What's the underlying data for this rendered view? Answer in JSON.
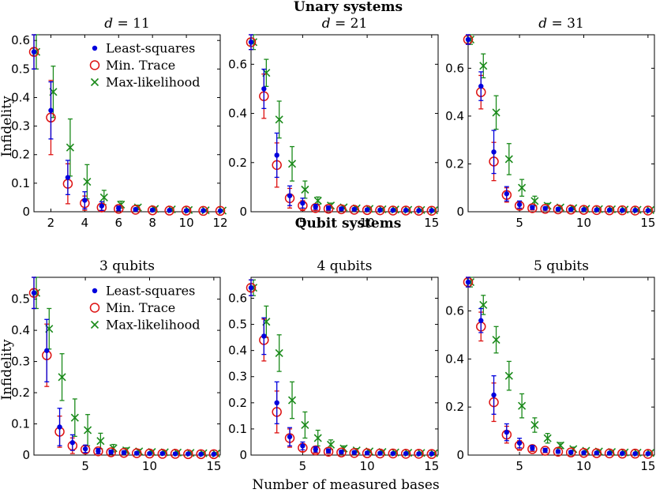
{
  "section_titles": {
    "top": "Unary systems",
    "bottom": "Qubit systems"
  },
  "ylabel": "Infidelity",
  "xlabel": "Number of measured bases",
  "legend": {
    "ls": "Least-squares",
    "mt": "Min. Trace",
    "ml": "Max-likelihood"
  },
  "colors": {
    "ls": "#0000dd",
    "mt": "#dd1111",
    "ml": "#1a8a1a"
  },
  "chart_data": [
    {
      "type": "scatter",
      "title_parts": [
        "d",
        " = 11"
      ],
      "xlim": [
        1,
        12
      ],
      "ylim": [
        0,
        0.62
      ],
      "xticks": [
        2,
        4,
        6,
        8,
        10,
        12
      ],
      "yticks": [
        0,
        0.1,
        0.2,
        0.3,
        0.4,
        0.5,
        0.6
      ],
      "ytick_labels": [
        "0",
        "0.1",
        "0.2",
        "0.3",
        "0.4",
        "0.5",
        "0.6"
      ],
      "legend": true,
      "series": [
        {
          "key": "ls",
          "x": [
            1,
            2,
            3,
            4,
            5,
            6,
            7,
            8,
            9,
            10,
            11,
            12
          ],
          "y": [
            0.56,
            0.355,
            0.12,
            0.04,
            0.02,
            0.012,
            0.008,
            0.006,
            0.005,
            0.004,
            0.004,
            0.003
          ],
          "err": [
            0.06,
            0.1,
            0.06,
            0.03,
            0.015,
            0.008,
            0.005,
            0.004,
            0.003,
            0.003,
            0.003,
            0.002
          ]
        },
        {
          "key": "mt",
          "x": [
            1,
            2,
            3,
            4,
            5,
            6,
            7,
            8,
            9,
            10,
            11,
            12
          ],
          "y": [
            0.56,
            0.33,
            0.098,
            0.03,
            0.015,
            0.01,
            0.007,
            0.005,
            0.004,
            0.004,
            0.003,
            0.003
          ],
          "err": [
            0.06,
            0.13,
            0.07,
            0.025,
            0.012,
            0.007,
            0.005,
            0.004,
            0.003,
            0.003,
            0.002,
            0.002
          ]
        },
        {
          "key": "ml",
          "x": [
            1,
            2,
            3,
            4,
            5,
            6,
            7,
            8,
            9,
            10,
            11,
            12
          ],
          "y": [
            0.56,
            0.42,
            0.225,
            0.105,
            0.05,
            0.025,
            0.015,
            0.01,
            0.008,
            0.006,
            0.005,
            0.004
          ],
          "err": [
            0.06,
            0.09,
            0.1,
            0.06,
            0.025,
            0.012,
            0.008,
            0.005,
            0.004,
            0.003,
            0.003,
            0.003
          ]
        }
      ]
    },
    {
      "type": "scatter",
      "title_parts": [
        "d",
        " = 21"
      ],
      "xlim": [
        1,
        15.5
      ],
      "ylim": [
        0,
        0.72
      ],
      "xticks": [
        5,
        10,
        15
      ],
      "yticks": [
        0,
        0.2,
        0.4,
        0.6
      ],
      "ytick_labels": [
        "0",
        "0.2",
        "0.4",
        "0.6"
      ],
      "legend": false,
      "series": [
        {
          "key": "ls",
          "x": [
            1,
            2,
            3,
            4,
            5,
            6,
            7,
            8,
            9,
            10,
            11,
            12,
            13,
            14,
            15
          ],
          "y": [
            0.69,
            0.5,
            0.23,
            0.065,
            0.035,
            0.02,
            0.015,
            0.012,
            0.01,
            0.008,
            0.007,
            0.006,
            0.006,
            0.005,
            0.005
          ],
          "err": [
            0.03,
            0.08,
            0.09,
            0.04,
            0.02,
            0.01,
            0.008,
            0.006,
            0.005,
            0.004,
            0.004,
            0.003,
            0.003,
            0.003,
            0.003
          ]
        },
        {
          "key": "mt",
          "x": [
            1,
            2,
            3,
            4,
            5,
            6,
            7,
            8,
            9,
            10,
            11,
            12,
            13,
            14,
            15
          ],
          "y": [
            0.69,
            0.47,
            0.19,
            0.055,
            0.025,
            0.015,
            0.012,
            0.01,
            0.008,
            0.007,
            0.006,
            0.005,
            0.005,
            0.004,
            0.004
          ],
          "err": [
            0.03,
            0.09,
            0.09,
            0.04,
            0.02,
            0.01,
            0.007,
            0.006,
            0.005,
            0.004,
            0.004,
            0.003,
            0.003,
            0.003,
            0.003
          ]
        },
        {
          "key": "ml",
          "x": [
            1,
            2,
            3,
            4,
            5,
            6,
            7,
            8,
            9,
            10,
            11,
            12,
            13,
            14,
            15
          ],
          "y": [
            0.69,
            0.565,
            0.375,
            0.195,
            0.09,
            0.045,
            0.025,
            0.018,
            0.014,
            0.012,
            0.01,
            0.009,
            0.008,
            0.007,
            0.006
          ],
          "err": [
            0.03,
            0.055,
            0.075,
            0.07,
            0.035,
            0.015,
            0.01,
            0.007,
            0.006,
            0.005,
            0.004,
            0.004,
            0.003,
            0.003,
            0.003
          ]
        }
      ]
    },
    {
      "type": "scatter",
      "title_parts": [
        "d",
        " = 31"
      ],
      "xlim": [
        1,
        15.5
      ],
      "ylim": [
        0,
        0.74
      ],
      "xticks": [
        5,
        10,
        15
      ],
      "yticks": [
        0,
        0.2,
        0.4,
        0.6
      ],
      "ytick_labels": [
        "0",
        "0.2",
        "0.4",
        "0.6"
      ],
      "legend": false,
      "series": [
        {
          "key": "ls",
          "x": [
            1,
            2,
            3,
            4,
            5,
            6,
            7,
            8,
            9,
            10,
            11,
            12,
            13,
            14,
            15
          ],
          "y": [
            0.72,
            0.525,
            0.25,
            0.075,
            0.03,
            0.018,
            0.014,
            0.011,
            0.01,
            0.009,
            0.008,
            0.007,
            0.006,
            0.006,
            0.005
          ],
          "err": [
            0.02,
            0.06,
            0.09,
            0.03,
            0.015,
            0.008,
            0.006,
            0.005,
            0.004,
            0.004,
            0.003,
            0.003,
            0.003,
            0.003,
            0.003
          ]
        },
        {
          "key": "mt",
          "x": [
            1,
            2,
            3,
            4,
            5,
            6,
            7,
            8,
            9,
            10,
            11,
            12,
            13,
            14,
            15
          ],
          "y": [
            0.72,
            0.5,
            0.21,
            0.07,
            0.025,
            0.015,
            0.012,
            0.01,
            0.009,
            0.008,
            0.007,
            0.006,
            0.006,
            0.005,
            0.005
          ],
          "err": [
            0.02,
            0.07,
            0.08,
            0.03,
            0.015,
            0.008,
            0.006,
            0.005,
            0.004,
            0.004,
            0.003,
            0.003,
            0.003,
            0.003,
            0.003
          ]
        },
        {
          "key": "ml",
          "x": [
            1,
            2,
            3,
            4,
            5,
            6,
            7,
            8,
            9,
            10,
            11,
            12,
            13,
            14,
            15
          ],
          "y": [
            0.72,
            0.61,
            0.415,
            0.22,
            0.1,
            0.045,
            0.025,
            0.018,
            0.015,
            0.012,
            0.011,
            0.01,
            0.009,
            0.008,
            0.007
          ],
          "err": [
            0.02,
            0.05,
            0.07,
            0.065,
            0.035,
            0.02,
            0.01,
            0.007,
            0.006,
            0.005,
            0.004,
            0.004,
            0.003,
            0.003,
            0.003
          ]
        }
      ]
    },
    {
      "type": "scatter",
      "title_parts": [
        "3 qubits"
      ],
      "xlim": [
        1,
        15.5
      ],
      "ylim": [
        0,
        0.57
      ],
      "xticks": [
        5,
        10,
        15
      ],
      "yticks": [
        0,
        0.1,
        0.2,
        0.3,
        0.4,
        0.5
      ],
      "ytick_labels": [
        "0",
        "0.1",
        "0.2",
        "0.3",
        "0.4",
        "0.5"
      ],
      "legend": true,
      "series": [
        {
          "key": "ls",
          "x": [
            1,
            2,
            3,
            4,
            5,
            6,
            7,
            8,
            9,
            10,
            11,
            12,
            13,
            14,
            15
          ],
          "y": [
            0.52,
            0.335,
            0.09,
            0.04,
            0.02,
            0.013,
            0.01,
            0.008,
            0.006,
            0.005,
            0.005,
            0.004,
            0.004,
            0.003,
            0.003
          ],
          "err": [
            0.05,
            0.1,
            0.06,
            0.025,
            0.012,
            0.008,
            0.006,
            0.005,
            0.004,
            0.003,
            0.003,
            0.003,
            0.002,
            0.002,
            0.002
          ]
        },
        {
          "key": "mt",
          "x": [
            1,
            2,
            3,
            4,
            5,
            6,
            7,
            8,
            9,
            10,
            11,
            12,
            13,
            14,
            15
          ],
          "y": [
            0.52,
            0.32,
            0.075,
            0.03,
            0.018,
            0.012,
            0.009,
            0.007,
            0.006,
            0.005,
            0.004,
            0.004,
            0.003,
            0.003,
            0.003
          ],
          "err": [
            0.05,
            0.1,
            0.05,
            0.025,
            0.012,
            0.008,
            0.006,
            0.005,
            0.004,
            0.003,
            0.003,
            0.003,
            0.002,
            0.002,
            0.002
          ]
        },
        {
          "key": "ml",
          "x": [
            1,
            2,
            3,
            4,
            5,
            6,
            7,
            8,
            9,
            10,
            11,
            12,
            13,
            14,
            15
          ],
          "y": [
            0.52,
            0.405,
            0.25,
            0.12,
            0.08,
            0.045,
            0.022,
            0.015,
            0.012,
            0.01,
            0.009,
            0.008,
            0.007,
            0.006,
            0.005
          ],
          "err": [
            0.05,
            0.065,
            0.075,
            0.06,
            0.05,
            0.025,
            0.012,
            0.008,
            0.006,
            0.005,
            0.004,
            0.004,
            0.003,
            0.003,
            0.003
          ]
        }
      ]
    },
    {
      "type": "scatter",
      "title_parts": [
        "4 qubits"
      ],
      "xlim": [
        1,
        15.5
      ],
      "ylim": [
        0,
        0.68
      ],
      "xticks": [
        5,
        10,
        15
      ],
      "yticks": [
        0,
        0.1,
        0.2,
        0.3,
        0.4,
        0.5,
        0.6
      ],
      "ytick_labels": [
        "0",
        "0.1",
        "0.2",
        "0.3",
        "0.4",
        "0.5",
        "0.6"
      ],
      "legend": false,
      "series": [
        {
          "key": "ls",
          "x": [
            1,
            2,
            3,
            4,
            5,
            6,
            7,
            8,
            9,
            10,
            11,
            12,
            13,
            14,
            15
          ],
          "y": [
            0.64,
            0.455,
            0.2,
            0.07,
            0.035,
            0.022,
            0.016,
            0.012,
            0.01,
            0.008,
            0.007,
            0.006,
            0.006,
            0.005,
            0.005
          ],
          "err": [
            0.03,
            0.07,
            0.08,
            0.035,
            0.015,
            0.01,
            0.007,
            0.006,
            0.005,
            0.004,
            0.004,
            0.003,
            0.003,
            0.003,
            0.003
          ]
        },
        {
          "key": "mt",
          "x": [
            1,
            2,
            3,
            4,
            5,
            6,
            7,
            8,
            9,
            10,
            11,
            12,
            13,
            14,
            15
          ],
          "y": [
            0.64,
            0.44,
            0.165,
            0.065,
            0.028,
            0.018,
            0.013,
            0.01,
            0.008,
            0.007,
            0.006,
            0.006,
            0.005,
            0.005,
            0.004
          ],
          "err": [
            0.03,
            0.08,
            0.08,
            0.035,
            0.015,
            0.01,
            0.007,
            0.006,
            0.005,
            0.004,
            0.004,
            0.003,
            0.003,
            0.003,
            0.003
          ]
        },
        {
          "key": "ml",
          "x": [
            1,
            2,
            3,
            4,
            5,
            6,
            7,
            8,
            9,
            10,
            11,
            12,
            13,
            14,
            15
          ],
          "y": [
            0.64,
            0.51,
            0.39,
            0.21,
            0.115,
            0.065,
            0.04,
            0.025,
            0.018,
            0.014,
            0.012,
            0.01,
            0.009,
            0.008,
            0.007
          ],
          "err": [
            0.03,
            0.06,
            0.07,
            0.07,
            0.05,
            0.03,
            0.018,
            0.01,
            0.007,
            0.005,
            0.005,
            0.004,
            0.004,
            0.003,
            0.003
          ]
        }
      ]
    },
    {
      "type": "scatter",
      "title_parts": [
        "5 qubits"
      ],
      "xlim": [
        1,
        15.5
      ],
      "ylim": [
        0,
        0.74
      ],
      "xticks": [
        5,
        10,
        15
      ],
      "yticks": [
        0,
        0.2,
        0.4,
        0.6
      ],
      "ytick_labels": [
        "0",
        "0.2",
        "0.4",
        "0.6"
      ],
      "legend": false,
      "series": [
        {
          "key": "ls",
          "x": [
            1,
            2,
            3,
            4,
            5,
            6,
            7,
            8,
            9,
            10,
            11,
            12,
            13,
            14,
            15
          ],
          "y": [
            0.72,
            0.56,
            0.25,
            0.095,
            0.05,
            0.03,
            0.02,
            0.015,
            0.012,
            0.01,
            0.009,
            0.008,
            0.007,
            0.006,
            0.006
          ],
          "err": [
            0.02,
            0.05,
            0.08,
            0.035,
            0.02,
            0.01,
            0.008,
            0.006,
            0.005,
            0.004,
            0.004,
            0.003,
            0.003,
            0.003,
            0.003
          ]
        },
        {
          "key": "mt",
          "x": [
            1,
            2,
            3,
            4,
            5,
            6,
            7,
            8,
            9,
            10,
            11,
            12,
            13,
            14,
            15
          ],
          "y": [
            0.72,
            0.535,
            0.22,
            0.085,
            0.04,
            0.025,
            0.018,
            0.014,
            0.011,
            0.009,
            0.008,
            0.007,
            0.006,
            0.006,
            0.005
          ],
          "err": [
            0.02,
            0.06,
            0.08,
            0.035,
            0.02,
            0.01,
            0.008,
            0.006,
            0.005,
            0.004,
            0.004,
            0.003,
            0.003,
            0.003,
            0.003
          ]
        },
        {
          "key": "ml",
          "x": [
            1,
            2,
            3,
            4,
            5,
            6,
            7,
            8,
            9,
            10,
            11,
            12,
            13,
            14,
            15
          ],
          "y": [
            0.72,
            0.625,
            0.48,
            0.33,
            0.205,
            0.125,
            0.07,
            0.04,
            0.025,
            0.018,
            0.015,
            0.013,
            0.011,
            0.01,
            0.009
          ],
          "err": [
            0.02,
            0.04,
            0.055,
            0.06,
            0.05,
            0.03,
            0.02,
            0.012,
            0.008,
            0.006,
            0.005,
            0.004,
            0.004,
            0.003,
            0.003
          ]
        }
      ]
    }
  ]
}
